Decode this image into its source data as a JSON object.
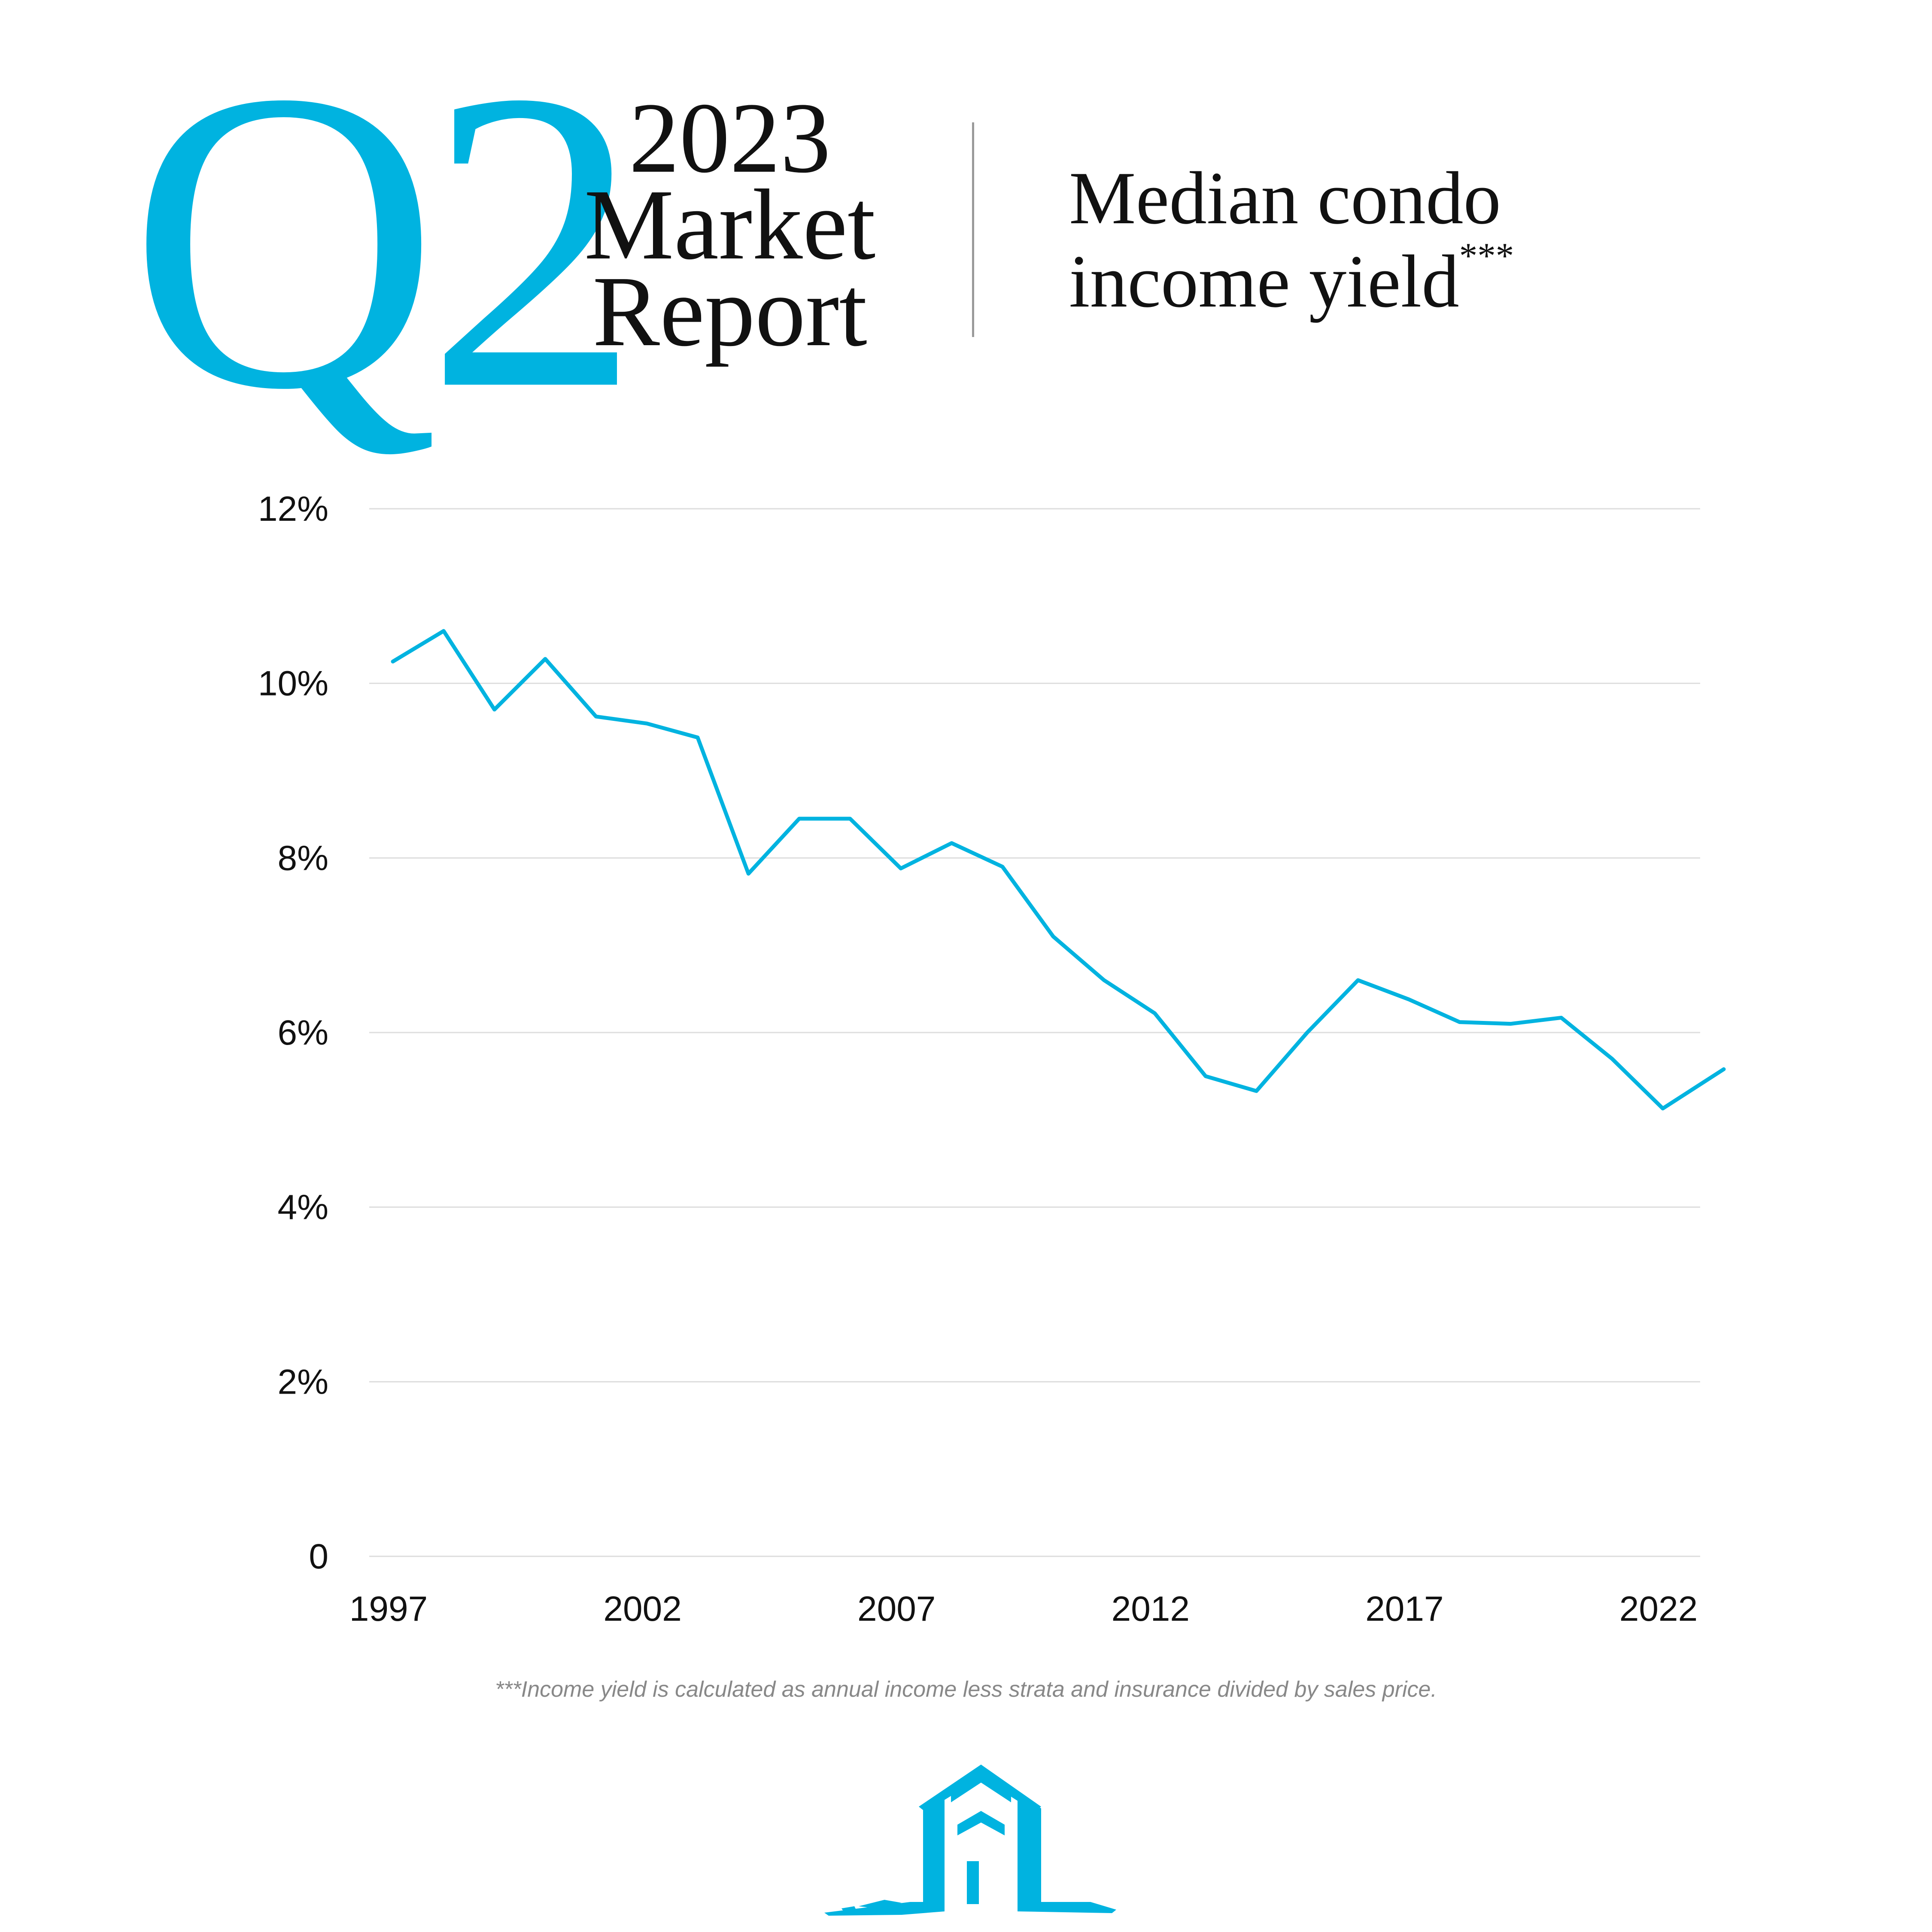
{
  "header": {
    "quarter": "Q2",
    "year": "2023",
    "line2": "Market",
    "line3": "Report",
    "title_line1": "Median condo",
    "title_line2": "income yield",
    "title_marker": "***"
  },
  "footnote": "***Income yield is calculated as annual income less strata and insurance divided by sales price.",
  "colors": {
    "accent": "#00b3e0",
    "text": "#111111",
    "grid": "#dddddd"
  },
  "logo_icon": "house-brush-logo",
  "chart_data": {
    "type": "line",
    "title": "Median condo income yield***",
    "xlabel": "",
    "ylabel": "",
    "ylim": [
      0,
      12
    ],
    "xlim": [
      1997,
      2023.2
    ],
    "grid": true,
    "y_ticks": [
      {
        "value": 12,
        "label": "12%"
      },
      {
        "value": 10,
        "label": "10%"
      },
      {
        "value": 8,
        "label": "8%"
      },
      {
        "value": 6,
        "label": "6%"
      },
      {
        "value": 4,
        "label": "4%"
      },
      {
        "value": 2,
        "label": "2%"
      },
      {
        "value": 0,
        "label": "0"
      }
    ],
    "x_ticks": [
      {
        "value": 1997,
        "label": "1997"
      },
      {
        "value": 2002,
        "label": "2002"
      },
      {
        "value": 2007,
        "label": "2007"
      },
      {
        "value": 2012,
        "label": "2012"
      },
      {
        "value": 2017,
        "label": "2017"
      },
      {
        "value": 2022,
        "label": "2022"
      }
    ],
    "series": [
      {
        "color": "#00b3e0",
        "x": [
          1997,
          1998,
          1999,
          2000,
          2001,
          2002,
          2003,
          2004,
          2005,
          2006,
          2007,
          2008,
          2009,
          2010,
          2011,
          2012,
          2013,
          2014,
          2015,
          2016,
          2017,
          2018,
          2019,
          2020,
          2021,
          2022,
          2023.2
        ],
        "values": [
          10.25,
          10.6,
          9.7,
          10.28,
          9.62,
          9.54,
          9.38,
          7.82,
          8.45,
          8.45,
          7.88,
          8.17,
          7.9,
          7.1,
          6.6,
          6.22,
          5.5,
          5.33,
          6.0,
          6.6,
          6.38,
          6.12,
          6.1,
          6.17,
          5.7,
          5.13,
          5.58
        ]
      }
    ]
  }
}
